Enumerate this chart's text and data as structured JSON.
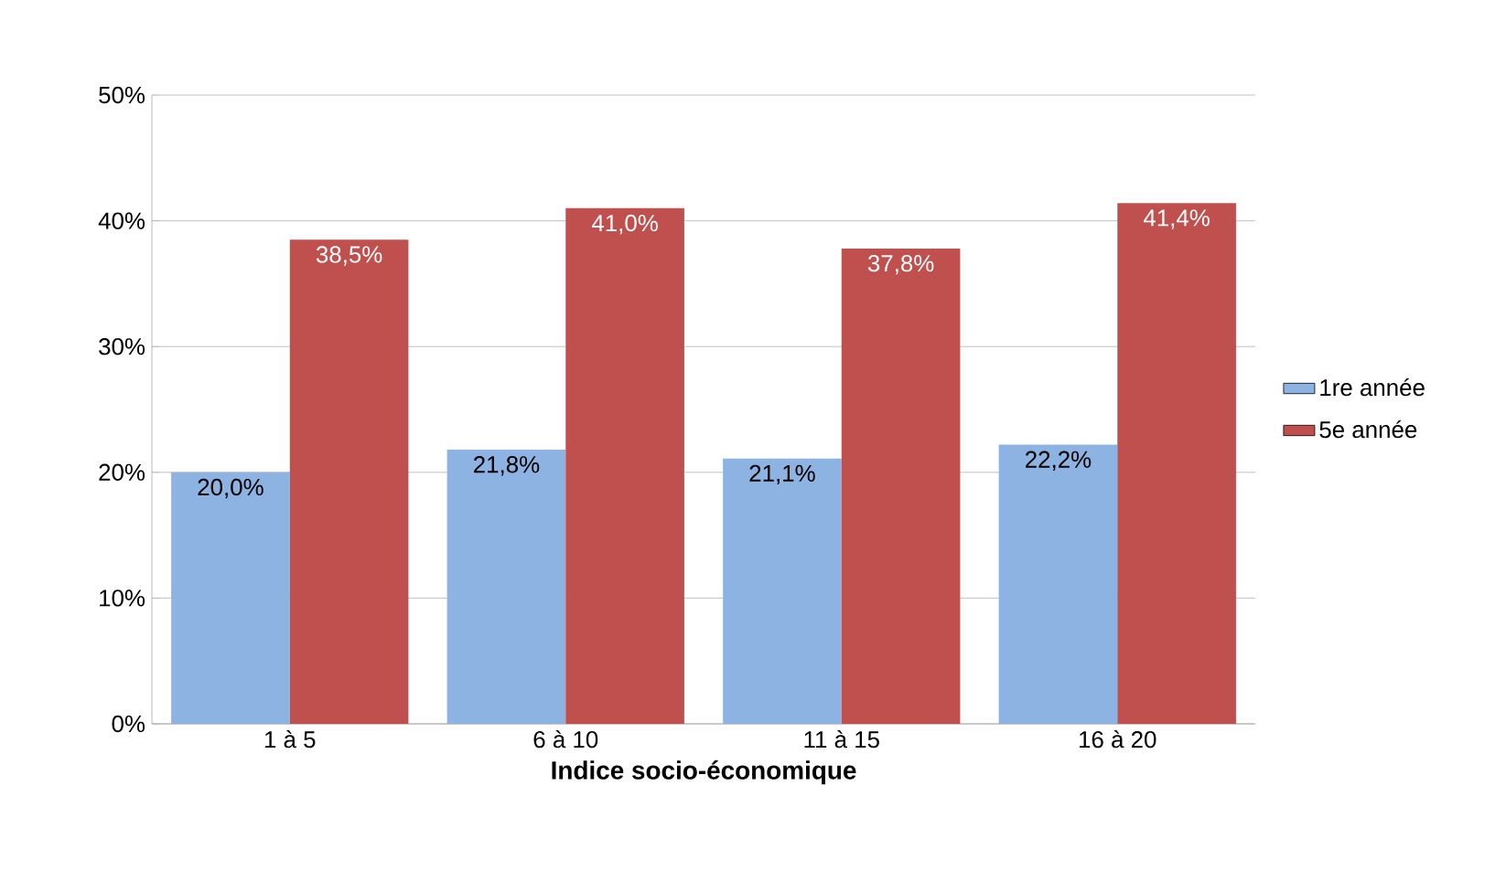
{
  "chart_data": {
    "type": "bar",
    "xlabel": "Indice socio-économique",
    "categories": [
      "1 à 5",
      "6 à 10",
      "11 à 15",
      "16 à 20"
    ],
    "series": [
      {
        "name": "1re année",
        "color": "#8db3e2",
        "values": [
          20.0,
          21.8,
          21.1,
          22.2
        ],
        "value_labels": [
          "20,0%",
          "21,8%",
          "21,1%",
          "22,2%"
        ]
      },
      {
        "name": "5e année",
        "color": "#c0504d",
        "values": [
          38.5,
          41.0,
          37.8,
          41.4
        ],
        "value_labels": [
          "38,5%",
          "41,0%",
          "37,8%",
          "41,4%"
        ]
      }
    ],
    "ylim": [
      0,
      50
    ],
    "yticks": [
      {
        "value": 0,
        "label": "0%"
      },
      {
        "value": 10,
        "label": "10%"
      },
      {
        "value": 20,
        "label": "20%"
      },
      {
        "value": 30,
        "label": "30%"
      },
      {
        "value": 40,
        "label": "40%"
      },
      {
        "value": 50,
        "label": "50%"
      }
    ],
    "grid": "y",
    "legend": "right"
  }
}
